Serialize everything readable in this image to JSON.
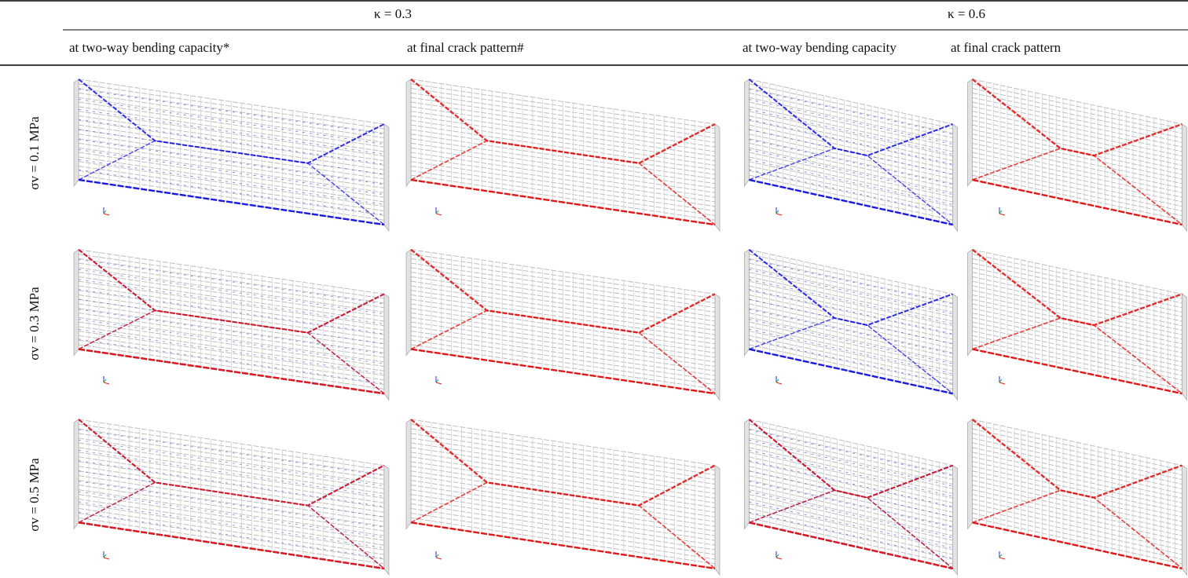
{
  "table": {
    "groups": [
      "κ = 0.3",
      "κ = 0.6"
    ],
    "columns": [
      "at two-way bending capacity*",
      "at final crack pattern#",
      "at two-way bending capacity",
      "at final crack pattern"
    ],
    "rows": [
      "σv = 0.1 MPa",
      "σv = 0.3 MPa",
      "σv = 0.5 MPa"
    ]
  }
}
